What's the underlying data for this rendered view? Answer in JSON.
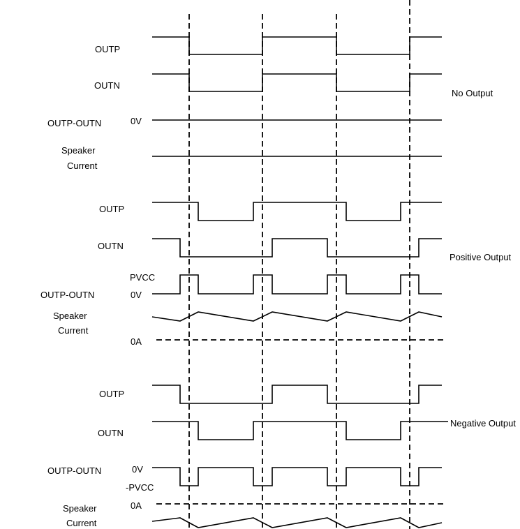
{
  "sections": [
    {
      "mode": "No Output",
      "outp": "OUTP",
      "outn": "OUTN",
      "diff": "OUTP-OUTN",
      "zero_v": "0V",
      "speaker": "Speaker",
      "current": "Current"
    },
    {
      "mode": "Positive Output",
      "outp": "OUTP",
      "outn": "OUTN",
      "diff": "OUTP-OUTN",
      "pvcc": "PVCC",
      "zero_v": "0V",
      "speaker": "Speaker",
      "current": "Current",
      "zero_a": "0A"
    },
    {
      "mode": "Negative Output",
      "outp": "OUTP",
      "outn": "OUTN",
      "diff": "OUTP-OUTN",
      "zero_v": "0V",
      "neg_pvcc": "-PVCC",
      "zero_a": "0A",
      "speaker": "Speaker",
      "current": "Current"
    }
  ]
}
